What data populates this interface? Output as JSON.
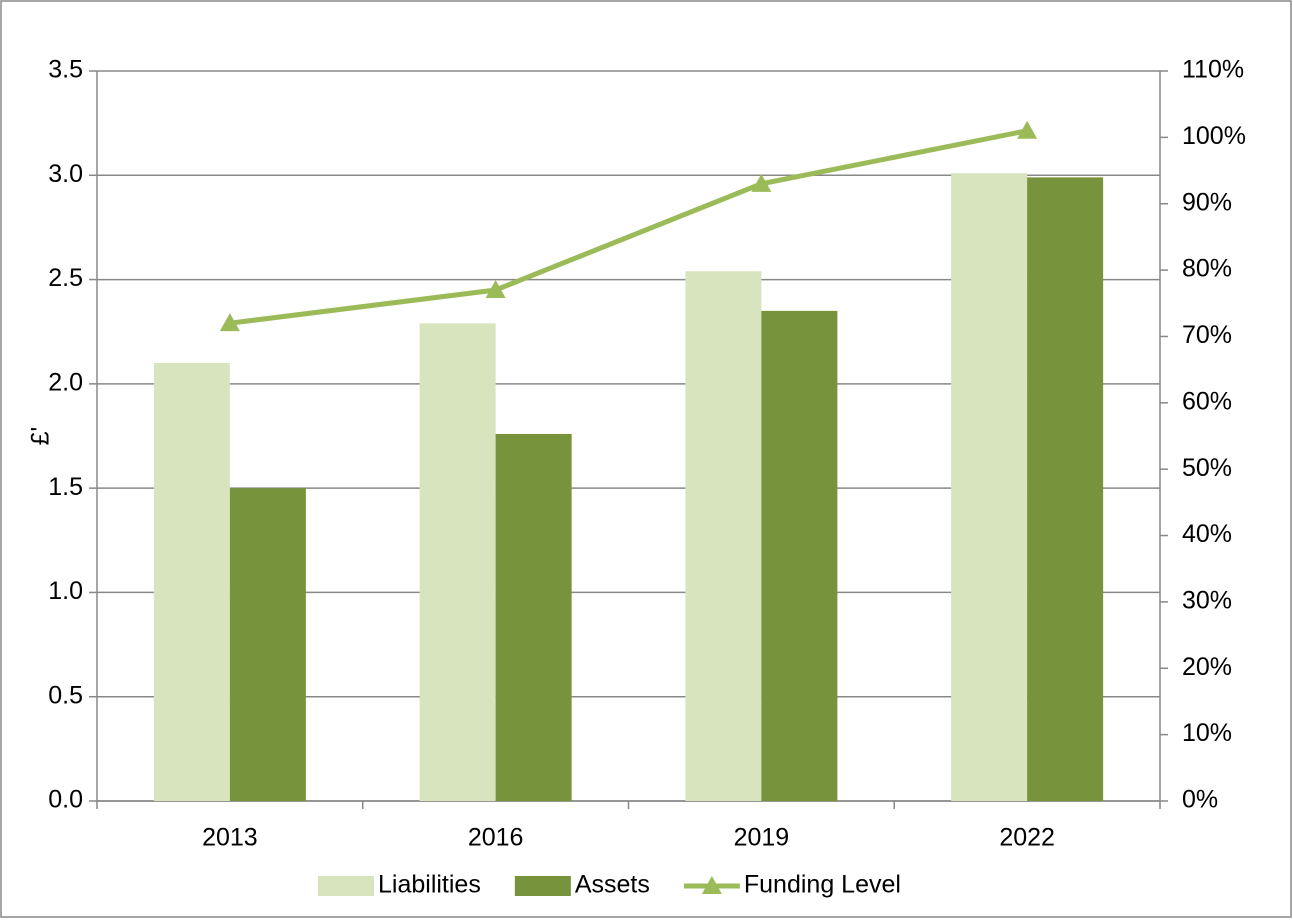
{
  "chart_data": {
    "type": "bar-line",
    "y_label": "£'",
    "categories": [
      "2013",
      "2016",
      "2019",
      "2022"
    ],
    "series": [
      {
        "name": "Liabilities",
        "type": "bar",
        "color": "#d7e4bd",
        "values": [
          2.1,
          2.29,
          2.54,
          3.01
        ]
      },
      {
        "name": "Assets",
        "type": "bar",
        "color": "#77933c",
        "values": [
          1.5,
          1.76,
          2.35,
          2.99
        ]
      },
      {
        "name": "Funding Level",
        "type": "line",
        "axis": "y2",
        "color": "#9bbb59",
        "marker": "triangle",
        "values": [
          72,
          77,
          93,
          101
        ]
      }
    ],
    "ylim": [
      0,
      3.5
    ],
    "yticks": [
      {
        "value": 0,
        "label": "0.0"
      },
      0.5,
      {
        "value": 1,
        "label": "1.0"
      },
      1.5,
      {
        "value": 2,
        "label": "2.0"
      },
      2.5,
      {
        "value": 3,
        "label": "3.0"
      },
      3.5
    ],
    "y2lim": [
      0,
      110
    ],
    "y2ticks": [
      {
        "value": 0,
        "label": "0%"
      },
      {
        "value": 10,
        "label": "10%"
      },
      {
        "value": 20,
        "label": "20%"
      },
      {
        "value": 30,
        "label": "30%"
      },
      {
        "value": 40,
        "label": "40%"
      },
      {
        "value": 50,
        "label": "50%"
      },
      {
        "value": 60,
        "label": "60%"
      },
      {
        "value": 70,
        "label": "70%"
      },
      {
        "value": 80,
        "label": "80%"
      },
      {
        "value": 90,
        "label": "90%"
      },
      {
        "value": 100,
        "label": "100%"
      },
      {
        "value": 110,
        "label": "110%"
      }
    ],
    "grid": true,
    "legend": "bottom"
  }
}
